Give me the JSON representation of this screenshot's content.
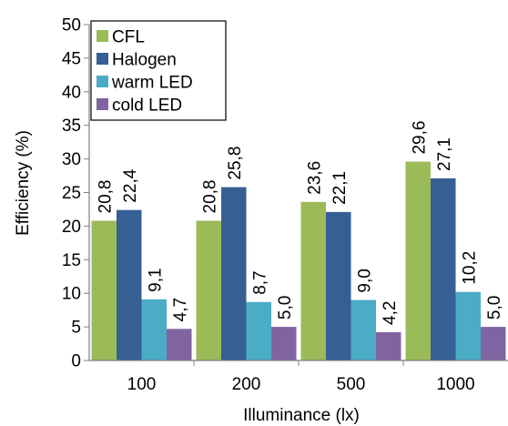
{
  "chart_data": {
    "type": "bar",
    "title": "",
    "xlabel": "Illuminance (lx)",
    "ylabel": "Efficiency (%)",
    "ylim": [
      0,
      50
    ],
    "yticks": [
      0,
      5,
      10,
      15,
      20,
      25,
      30,
      35,
      40,
      45,
      50
    ],
    "ytick_labels": [
      "0",
      "5",
      "10",
      "15",
      "20",
      "25",
      "30",
      "35",
      "40",
      "45",
      "50"
    ],
    "grid": false,
    "legend_position": "top-left",
    "categories": [
      "100",
      "200",
      "500",
      "1000"
    ],
    "series": [
      {
        "name": "CFL",
        "color": "#9bbb59",
        "values": [
          20.8,
          20.8,
          23.6,
          29.6
        ],
        "labels": [
          "20,8",
          "20,8",
          "23,6",
          "29,6"
        ]
      },
      {
        "name": "Halogen",
        "color": "#365f94",
        "values": [
          22.4,
          25.8,
          22.1,
          27.1
        ],
        "labels": [
          "22,4",
          "25,8",
          "22,1",
          "27,1"
        ]
      },
      {
        "name": "warm LED",
        "color": "#4bacc6",
        "values": [
          9.1,
          8.7,
          9.0,
          10.2
        ],
        "labels": [
          "9,1",
          "8,7",
          "9,0",
          "10,2"
        ]
      },
      {
        "name": "cold LED",
        "color": "#8064a2",
        "values": [
          4.7,
          5.0,
          4.2,
          5.0
        ],
        "labels": [
          "4,7",
          "5,0",
          "4,2",
          "5,0"
        ]
      }
    ]
  }
}
